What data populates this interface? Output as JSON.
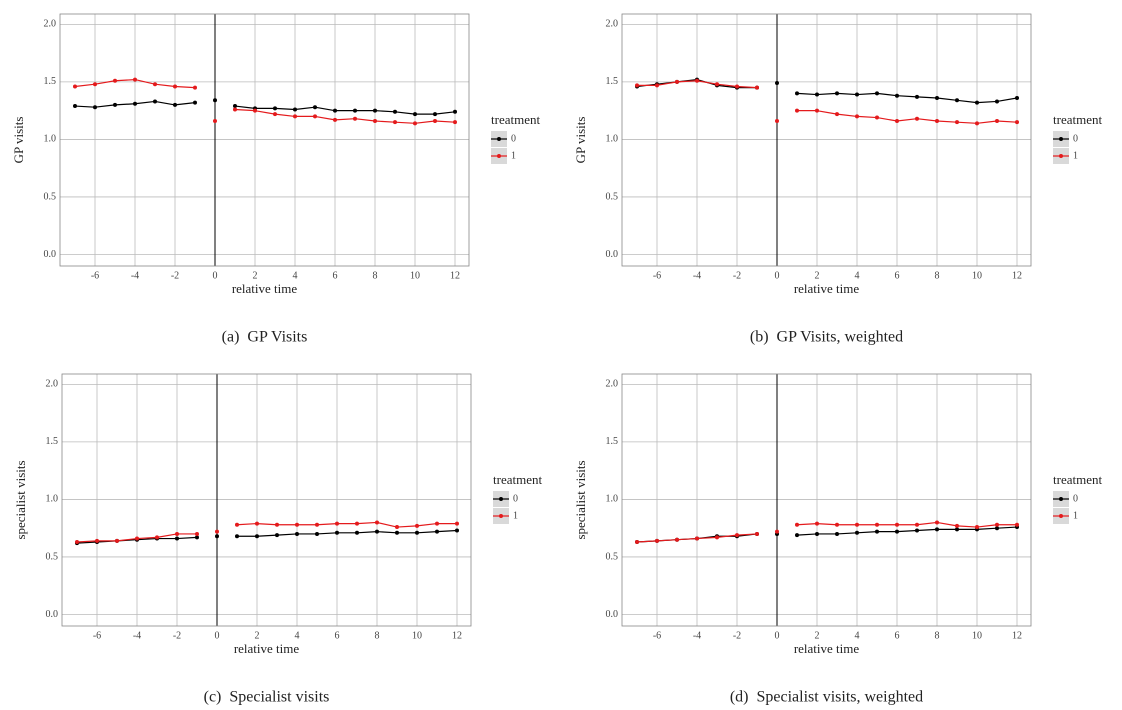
{
  "chart_data": [
    {
      "type": "line",
      "caption": "(a)  GP Visits",
      "x_label": "relative time",
      "y_label": "GP visits",
      "legend_title": "treatment",
      "x": [
        -7,
        -6,
        -5,
        -4,
        -3,
        -2,
        -1,
        0,
        1,
        2,
        3,
        4,
        5,
        6,
        7,
        8,
        9,
        10,
        11,
        12
      ],
      "series": [
        {
          "name": "0",
          "color": "#000000",
          "values": [
            1.29,
            1.28,
            1.3,
            1.31,
            1.33,
            1.3,
            1.32,
            1.34,
            1.29,
            1.27,
            1.27,
            1.26,
            1.28,
            1.25,
            1.25,
            1.25,
            1.24,
            1.22,
            1.22,
            1.24
          ]
        },
        {
          "name": "1",
          "color": "#e41a1c",
          "values": [
            1.46,
            1.48,
            1.51,
            1.52,
            1.48,
            1.46,
            1.45,
            1.16,
            1.26,
            1.25,
            1.22,
            1.2,
            1.2,
            1.17,
            1.18,
            1.16,
            1.15,
            1.14,
            1.16,
            1.15
          ]
        }
      ],
      "xlim": [
        -7.75,
        12.7
      ],
      "ylim": [
        -0.1,
        2.09
      ],
      "xticks": [
        -6,
        -4,
        -2,
        0,
        2,
        4,
        6,
        8,
        10,
        12
      ],
      "yticks": [
        {
          "value": 0,
          "label": "0.0"
        },
        0.5,
        {
          "value": 1,
          "label": "1.0"
        },
        1.5,
        {
          "value": 2,
          "label": "2.0"
        }
      ],
      "vline": 0,
      "grid": true
    },
    {
      "type": "line",
      "caption": "(b)  GP Visits, weighted",
      "x_label": "relative time",
      "y_label": "GP visits",
      "legend_title": "treatment",
      "x": [
        -7,
        -6,
        -5,
        -4,
        -3,
        -2,
        -1,
        0,
        1,
        2,
        3,
        4,
        5,
        6,
        7,
        8,
        9,
        10,
        11,
        12
      ],
      "series": [
        {
          "name": "0",
          "color": "#000000",
          "values": [
            1.46,
            1.48,
            1.5,
            1.52,
            1.47,
            1.45,
            1.45,
            1.49,
            1.4,
            1.39,
            1.4,
            1.39,
            1.4,
            1.38,
            1.37,
            1.36,
            1.34,
            1.32,
            1.33,
            1.36
          ]
        },
        {
          "name": "1",
          "color": "#e41a1c",
          "values": [
            1.47,
            1.47,
            1.5,
            1.51,
            1.48,
            1.46,
            1.45,
            1.16,
            1.25,
            1.25,
            1.22,
            1.2,
            1.19,
            1.16,
            1.18,
            1.16,
            1.15,
            1.14,
            1.16,
            1.15
          ]
        }
      ],
      "xlim": [
        -7.75,
        12.7
      ],
      "ylim": [
        -0.1,
        2.09
      ],
      "xticks": [
        -6,
        -4,
        -2,
        0,
        2,
        4,
        6,
        8,
        10,
        12
      ],
      "yticks": [
        {
          "value": 0,
          "label": "0.0"
        },
        0.5,
        {
          "value": 1,
          "label": "1.0"
        },
        1.5,
        {
          "value": 2,
          "label": "2.0"
        }
      ],
      "vline": 0,
      "grid": true
    },
    {
      "type": "line",
      "caption": "(c)  Specialist visits",
      "x_label": "relative time",
      "y_label": "specialist visits",
      "legend_title": "treatment",
      "x": [
        -7,
        -6,
        -5,
        -4,
        -3,
        -2,
        -1,
        0,
        1,
        2,
        3,
        4,
        5,
        6,
        7,
        8,
        9,
        10,
        11,
        12
      ],
      "series": [
        {
          "name": "0",
          "color": "#000000",
          "values": [
            0.62,
            0.63,
            0.64,
            0.65,
            0.66,
            0.66,
            0.67,
            0.68,
            0.68,
            0.68,
            0.69,
            0.7,
            0.7,
            0.71,
            0.71,
            0.72,
            0.71,
            0.71,
            0.72,
            0.73
          ]
        },
        {
          "name": "1",
          "color": "#e41a1c",
          "values": [
            0.63,
            0.64,
            0.64,
            0.66,
            0.67,
            0.7,
            0.7,
            0.72,
            0.78,
            0.79,
            0.78,
            0.78,
            0.78,
            0.79,
            0.79,
            0.8,
            0.76,
            0.77,
            0.79,
            0.79
          ]
        }
      ],
      "xlim": [
        -7.75,
        12.7
      ],
      "ylim": [
        -0.1,
        2.09
      ],
      "xticks": [
        -6,
        -4,
        -2,
        0,
        2,
        4,
        6,
        8,
        10,
        12
      ],
      "yticks": [
        {
          "value": 0,
          "label": "0.0"
        },
        0.5,
        {
          "value": 1,
          "label": "1.0"
        },
        1.5,
        {
          "value": 2,
          "label": "2.0"
        }
      ],
      "vline": 0,
      "grid": true
    },
    {
      "type": "line",
      "caption": "(d)  Specialist visits, weighted",
      "x_label": "relative time",
      "y_label": "specialist visits",
      "legend_title": "treatment",
      "x": [
        -7,
        -6,
        -5,
        -4,
        -3,
        -2,
        -1,
        0,
        1,
        2,
        3,
        4,
        5,
        6,
        7,
        8,
        9,
        10,
        11,
        12
      ],
      "series": [
        {
          "name": "0",
          "color": "#000000",
          "values": [
            0.63,
            0.64,
            0.65,
            0.66,
            0.68,
            0.68,
            0.7,
            0.7,
            0.69,
            0.7,
            0.7,
            0.71,
            0.72,
            0.72,
            0.73,
            0.74,
            0.74,
            0.74,
            0.75,
            0.76
          ]
        },
        {
          "name": "1",
          "color": "#e41a1c",
          "values": [
            0.63,
            0.64,
            0.65,
            0.66,
            0.67,
            0.69,
            0.7,
            0.72,
            0.78,
            0.79,
            0.78,
            0.78,
            0.78,
            0.78,
            0.78,
            0.8,
            0.77,
            0.76,
            0.78,
            0.78
          ]
        }
      ],
      "xlim": [
        -7.75,
        12.7
      ],
      "ylim": [
        -0.1,
        2.09
      ],
      "xticks": [
        -6,
        -4,
        -2,
        0,
        2,
        4,
        6,
        8,
        10,
        12
      ],
      "yticks": [
        {
          "value": 0,
          "label": "0.0"
        },
        0.5,
        {
          "value": 1,
          "label": "1.0"
        },
        1.5,
        {
          "value": 2,
          "label": "2.0"
        }
      ],
      "vline": 0,
      "grid": true
    }
  ]
}
